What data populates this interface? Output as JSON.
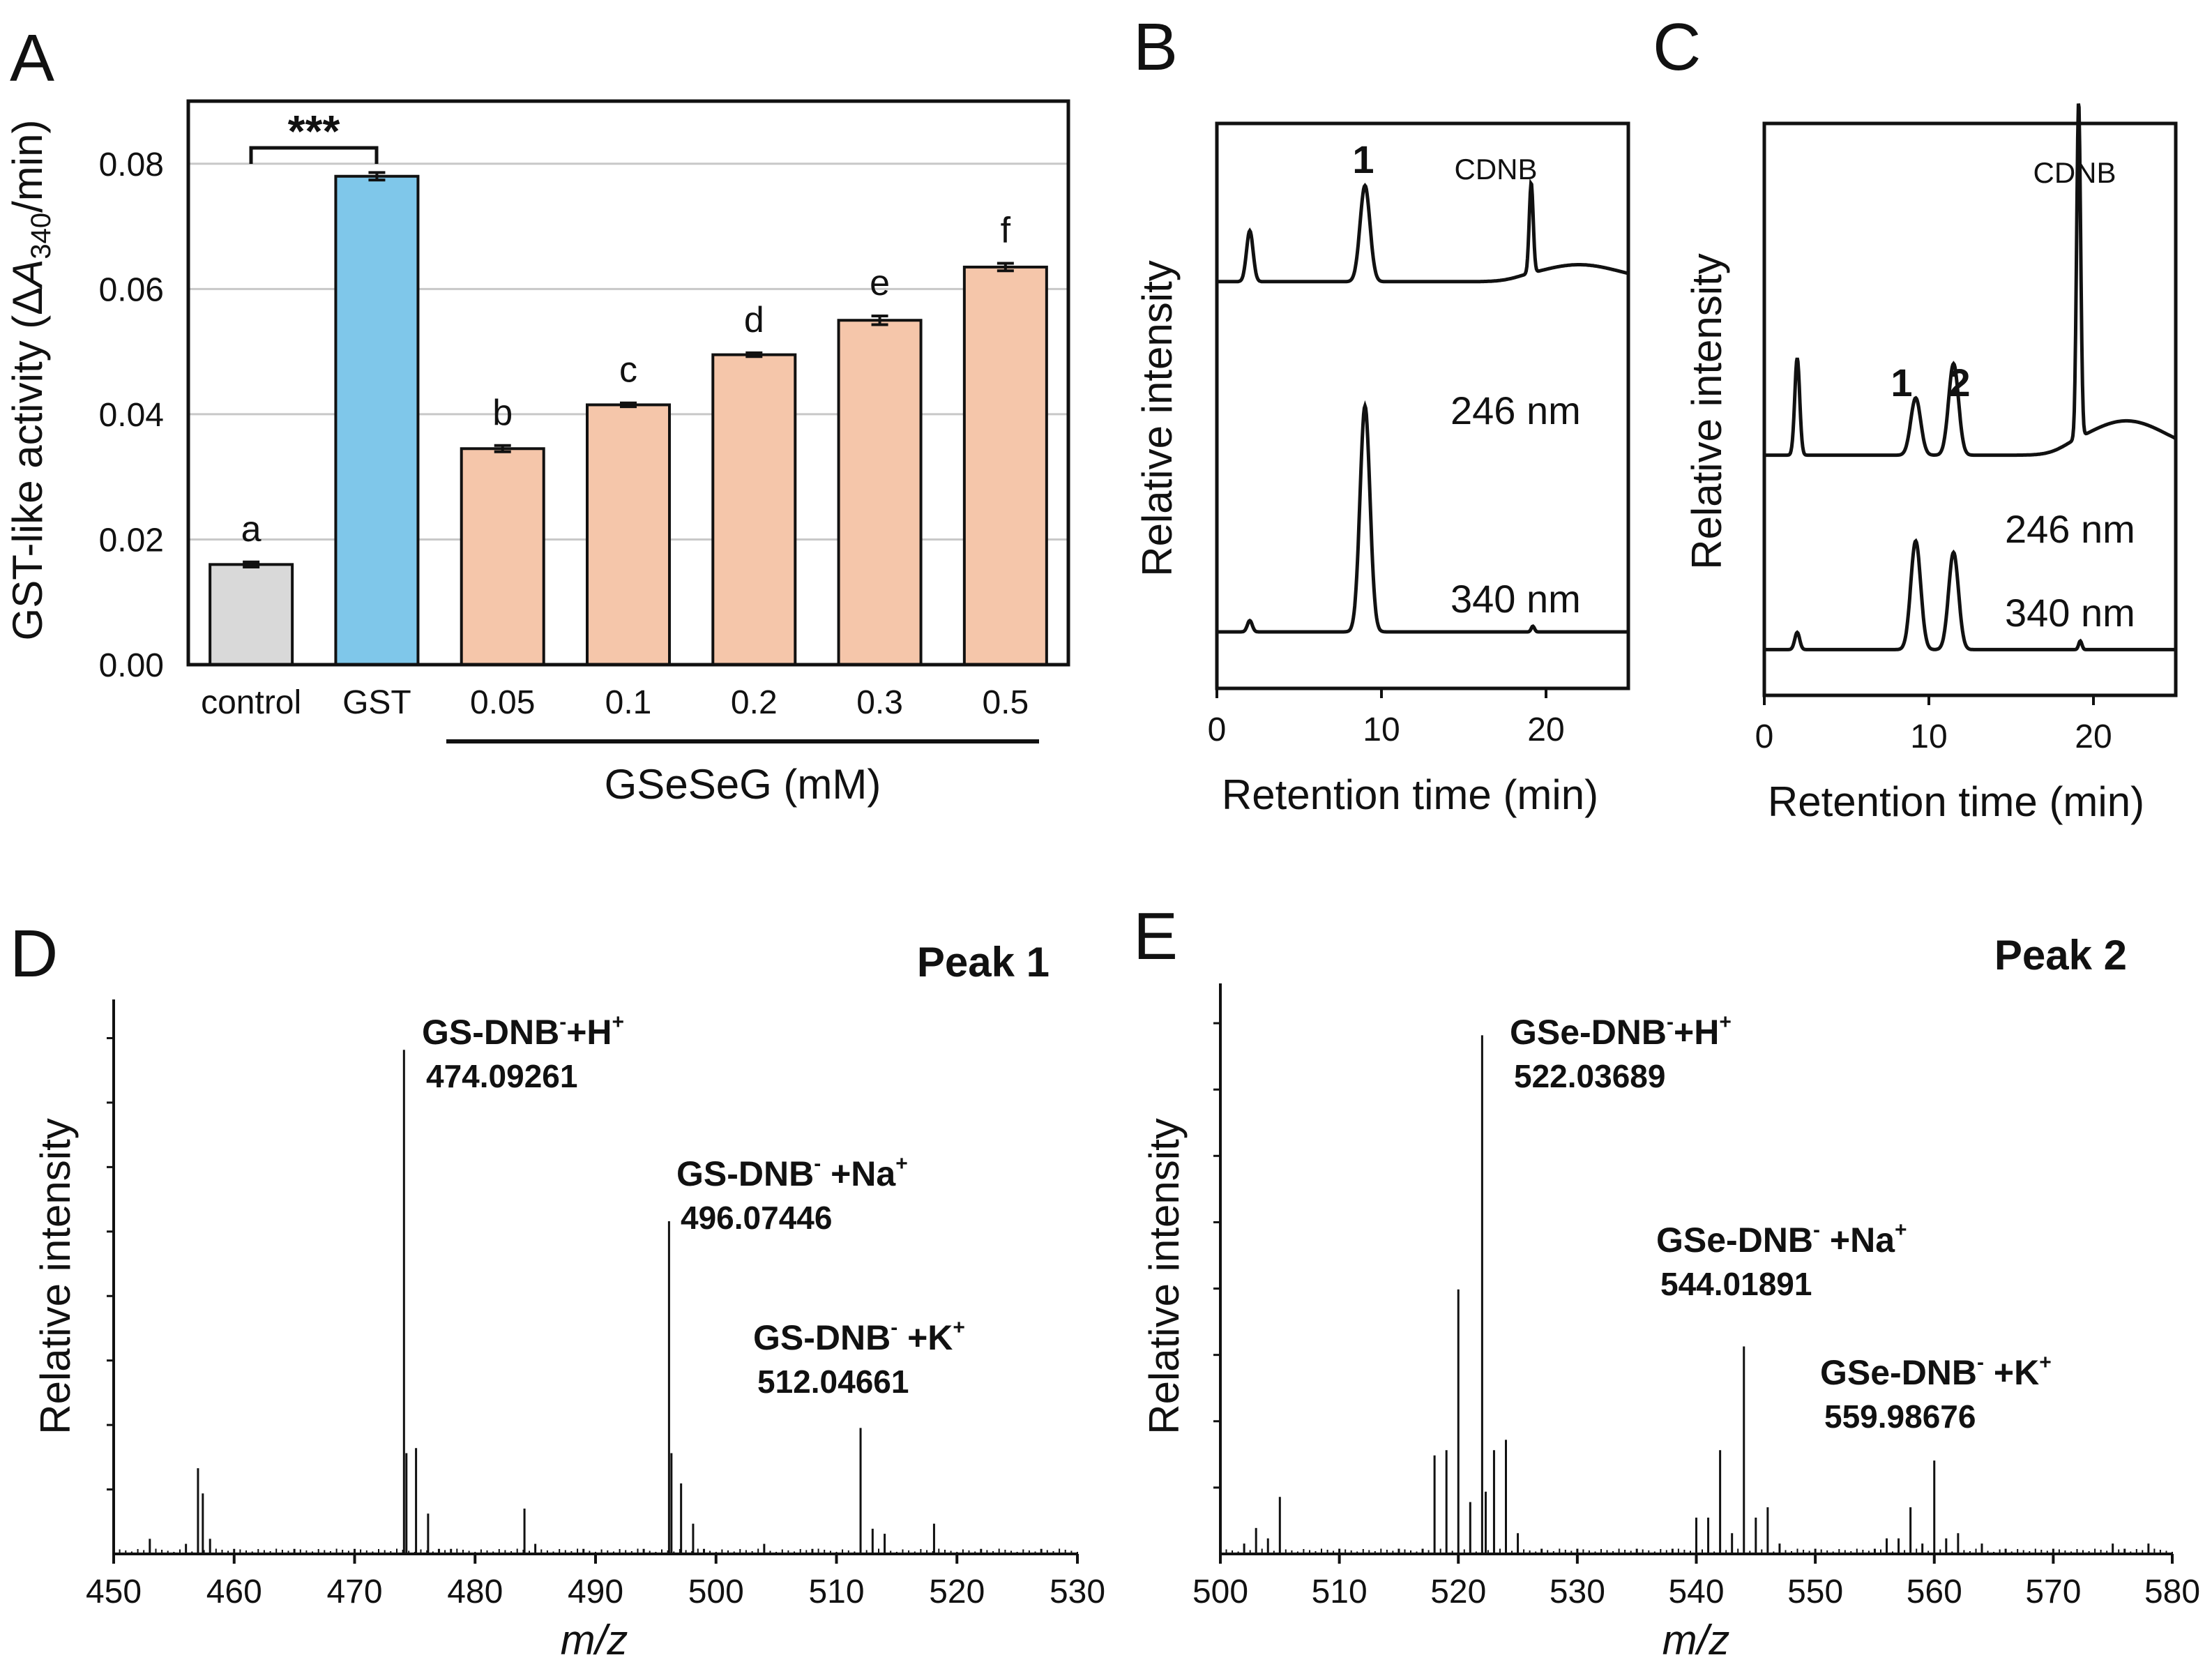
{
  "chart_data": [
    {
      "id": "A",
      "type": "bar",
      "panel_label": "A",
      "ylabel": "GST-like activity (ΔA340/min)",
      "ylabel_parts": {
        "pre": "GST-like activity (Δ",
        "A": "A",
        "sub": "340",
        "post": "/min)"
      },
      "ylim": [
        0,
        0.09
      ],
      "yticks": [
        0,
        0.02,
        0.04,
        0.06,
        0.08
      ],
      "ytick_labels": [
        "0.00",
        "0.02",
        "0.04",
        "0.06",
        "0.08"
      ],
      "categories": [
        "control",
        "GST",
        "0.05",
        "0.1",
        "0.2",
        "0.3",
        "0.5"
      ],
      "values": [
        0.016,
        0.078,
        0.0345,
        0.0415,
        0.0495,
        0.055,
        0.0635
      ],
      "errors": [
        0.0004,
        0.0006,
        0.0005,
        0.0003,
        0.0003,
        0.0007,
        0.0006
      ],
      "colors": [
        "#d9d9d9",
        "#7fc7ea",
        "#f5c6aa",
        "#f5c6aa",
        "#f5c6aa",
        "#f5c6aa",
        "#f5c6aa"
      ],
      "letters": [
        "a",
        "",
        "b",
        "c",
        "d",
        "e",
        "f"
      ],
      "significance": "***",
      "group_label": "GSeSeG (mM)",
      "grid": true
    },
    {
      "id": "B",
      "type": "line",
      "panel_label": "B",
      "xlabel": "Retention time (min)",
      "ylabel": "Relative intensity",
      "xlim": [
        0,
        25
      ],
      "xticks": [
        0,
        10,
        20
      ],
      "peak_labels": [
        "1"
      ],
      "cdnb_label": "CDNB",
      "series": [
        {
          "name": "246 nm",
          "baseline": 0.72,
          "peaks": [
            [
              2.0,
              0.09,
              0.2
            ],
            [
              9.0,
              0.17,
              0.3
            ],
            [
              19.1,
              0.16,
              0.12
            ]
          ],
          "hump": [
            22,
            0.03,
            2.5
          ]
        },
        {
          "name": "340 nm",
          "baseline": 0.1,
          "peaks": [
            [
              2.0,
              0.02,
              0.15
            ],
            [
              9.0,
              0.4,
              0.3
            ],
            [
              19.2,
              0.01,
              0.1
            ]
          ],
          "hump": [
            22,
            0,
            2
          ]
        }
      ]
    },
    {
      "id": "C",
      "type": "line",
      "panel_label": "C",
      "xlabel": "Retention time (min)",
      "ylabel": "Relative intensity",
      "xlim": [
        0,
        25
      ],
      "xticks": [
        0,
        10,
        20
      ],
      "peak_labels": [
        "1",
        "2"
      ],
      "cdnb_label": "CDNB",
      "series": [
        {
          "name": "246 nm",
          "baseline": 0.42,
          "peaks": [
            [
              2.0,
              0.17,
              0.15
            ],
            [
              9.2,
              0.1,
              0.3
            ],
            [
              11.5,
              0.16,
              0.3
            ],
            [
              19.1,
              0.59,
              0.12
            ]
          ],
          "hump": [
            22,
            0.06,
            2.5
          ]
        },
        {
          "name": "340 nm",
          "baseline": 0.08,
          "peaks": [
            [
              2.0,
              0.03,
              0.15
            ],
            [
              9.2,
              0.19,
              0.3
            ],
            [
              11.5,
              0.17,
              0.3
            ],
            [
              19.2,
              0.015,
              0.1
            ]
          ],
          "hump": [
            22,
            0,
            2
          ]
        }
      ]
    },
    {
      "id": "D",
      "type": "bar",
      "subtype": "mass-spectrum",
      "panel_label": "D",
      "title": "Peak 1",
      "xlabel": "m/z",
      "ylabel": "Relative intensity",
      "xlim": [
        450,
        530
      ],
      "ylim": [
        0,
        1.1
      ],
      "xticks": [
        450,
        460,
        470,
        480,
        490,
        500,
        510,
        520,
        530
      ],
      "peaks": [
        [
          453,
          0.03
        ],
        [
          456,
          0.02
        ],
        [
          457,
          0.17
        ],
        [
          457.4,
          0.12
        ],
        [
          458,
          0.03
        ],
        [
          460,
          0.01
        ],
        [
          465,
          0.01
        ],
        [
          470,
          0.01
        ],
        [
          474.1,
          1.0
        ],
        [
          474.3,
          0.2
        ],
        [
          475.1,
          0.21
        ],
        [
          476.1,
          0.08
        ],
        [
          477,
          0.01
        ],
        [
          478,
          0.01
        ],
        [
          484.1,
          0.09
        ],
        [
          485,
          0.02
        ],
        [
          489,
          0.01
        ],
        [
          494,
          0.01
        ],
        [
          496.1,
          0.66
        ],
        [
          496.3,
          0.2
        ],
        [
          497.1,
          0.14
        ],
        [
          498.1,
          0.06
        ],
        [
          499,
          0.01
        ],
        [
          504,
          0.02
        ],
        [
          508,
          0.01
        ],
        [
          512.0,
          0.25
        ],
        [
          513.0,
          0.05
        ],
        [
          514.0,
          0.04
        ],
        [
          518.1,
          0.06
        ],
        [
          522,
          0.01
        ],
        [
          527,
          0.01
        ]
      ],
      "annotations": [
        {
          "label": "GS-DNB",
          "sup": "-",
          "ion": "+H",
          "ion_sup": "+",
          "value": "474.09261"
        },
        {
          "label": "GS-DNB",
          "sup": "-",
          "ion": " +Na",
          "ion_sup": "+",
          "value": "496.07446"
        },
        {
          "label": "GS-DNB",
          "sup": "-",
          "ion": " +K",
          "ion_sup": "+",
          "value": "512.04661"
        }
      ]
    },
    {
      "id": "E",
      "type": "bar",
      "subtype": "mass-spectrum",
      "panel_label": "E",
      "title": "Peak 2",
      "xlabel": "m/z",
      "ylabel": "Relative intensity",
      "xlim": [
        500,
        580
      ],
      "ylim": [
        0,
        1.1
      ],
      "xticks": [
        500,
        510,
        520,
        530,
        540,
        550,
        560,
        570,
        580
      ],
      "peaks": [
        [
          502,
          0.02
        ],
        [
          503,
          0.05
        ],
        [
          504,
          0.03
        ],
        [
          505,
          0.11
        ],
        [
          510,
          0.01
        ],
        [
          515,
          0.01
        ],
        [
          517,
          0.01
        ],
        [
          518,
          0.19
        ],
        [
          519,
          0.2
        ],
        [
          520,
          0.51
        ],
        [
          521,
          0.1
        ],
        [
          522,
          1.0
        ],
        [
          522.3,
          0.12
        ],
        [
          523,
          0.2
        ],
        [
          524,
          0.22
        ],
        [
          525,
          0.04
        ],
        [
          527,
          0.01
        ],
        [
          530,
          0.01
        ],
        [
          535,
          0.01
        ],
        [
          538,
          0.01
        ],
        [
          540,
          0.07
        ],
        [
          541,
          0.07
        ],
        [
          542,
          0.2
        ],
        [
          543,
          0.04
        ],
        [
          544,
          0.4
        ],
        [
          545,
          0.07
        ],
        [
          546,
          0.09
        ],
        [
          547,
          0.02
        ],
        [
          550,
          0.01
        ],
        [
          555,
          0.01
        ],
        [
          556,
          0.03
        ],
        [
          557,
          0.03
        ],
        [
          558,
          0.09
        ],
        [
          559,
          0.02
        ],
        [
          560,
          0.18
        ],
        [
          561,
          0.03
        ],
        [
          562,
          0.04
        ],
        [
          564,
          0.02
        ],
        [
          566,
          0.01
        ],
        [
          570,
          0.01
        ],
        [
          575,
          0.02
        ],
        [
          576,
          0.01
        ],
        [
          578,
          0.02
        ]
      ],
      "annotations": [
        {
          "label": "GSe-DNB",
          "sup": "-",
          "ion": "+H",
          "ion_sup": "+",
          "value": "522.03689"
        },
        {
          "label": "GSe-DNB",
          "sup": "-",
          "ion": " +Na",
          "ion_sup": "+",
          "value": "544.01891"
        },
        {
          "label": "GSe-DNB",
          "sup": "-",
          "ion": " +K",
          "ion_sup": "+",
          "value": "559.98676"
        }
      ]
    }
  ]
}
